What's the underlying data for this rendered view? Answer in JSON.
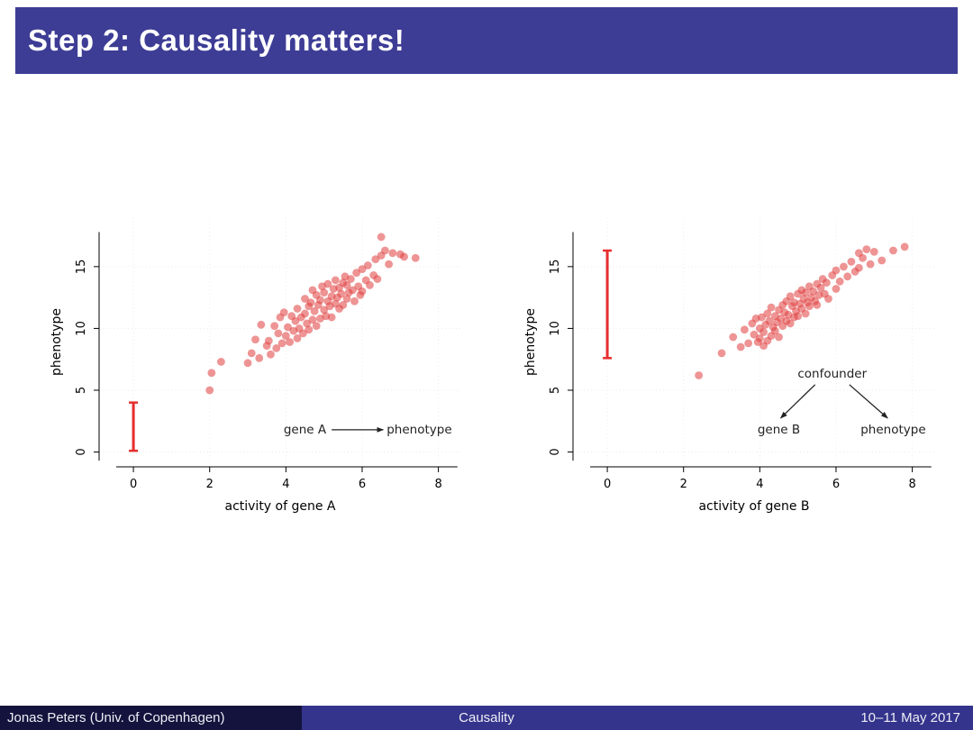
{
  "slide": {
    "title": "Step 2: Causality matters!",
    "footer": {
      "author": "Jonas Peters (Univ. of Copenhagen)",
      "title": "Causality",
      "date": "10–11 May 2017"
    },
    "colors": {
      "header_bg": "#3d3d96",
      "footer_author_bg": "#13133d",
      "footer_main_bg": "#34348c",
      "point": "#e03c3c",
      "interval": "#e62e2e",
      "axis": "#000000",
      "grid": "#ececec",
      "annotation": "#222222"
    }
  },
  "chart_data": [
    {
      "type": "scatter",
      "title": "",
      "xlabel": "activity of gene A",
      "ylabel": "phenotype",
      "xlim": [
        -0.9,
        8.6
      ],
      "ylim": [
        -1.2,
        19
      ],
      "xticks": [
        0,
        2,
        4,
        6,
        8
      ],
      "yticks": [
        0,
        5,
        10,
        15
      ],
      "interval": {
        "x": 0,
        "y0": 0.1,
        "y1": 4.0
      },
      "points": [
        [
          2.0,
          5.0
        ],
        [
          2.05,
          6.4
        ],
        [
          2.3,
          7.3
        ],
        [
          3.0,
          7.2
        ],
        [
          3.1,
          8.0
        ],
        [
          3.2,
          9.1
        ],
        [
          3.3,
          7.6
        ],
        [
          3.35,
          10.3
        ],
        [
          3.5,
          8.6
        ],
        [
          3.55,
          9.0
        ],
        [
          3.6,
          7.9
        ],
        [
          3.7,
          10.2
        ],
        [
          3.75,
          8.4
        ],
        [
          3.8,
          9.6
        ],
        [
          3.85,
          10.9
        ],
        [
          3.9,
          8.8
        ],
        [
          3.95,
          11.3
        ],
        [
          4.0,
          9.4
        ],
        [
          4.05,
          10.1
        ],
        [
          4.1,
          8.9
        ],
        [
          4.15,
          11.0
        ],
        [
          4.2,
          9.8
        ],
        [
          4.25,
          10.6
        ],
        [
          4.3,
          9.2
        ],
        [
          4.3,
          11.6
        ],
        [
          4.35,
          10.0
        ],
        [
          4.4,
          10.9
        ],
        [
          4.45,
          9.6
        ],
        [
          4.5,
          11.2
        ],
        [
          4.5,
          12.4
        ],
        [
          4.55,
          10.4
        ],
        [
          4.6,
          11.8
        ],
        [
          4.6,
          9.9
        ],
        [
          4.65,
          12.1
        ],
        [
          4.7,
          10.7
        ],
        [
          4.7,
          13.1
        ],
        [
          4.75,
          11.4
        ],
        [
          4.8,
          12.7
        ],
        [
          4.8,
          10.2
        ],
        [
          4.85,
          11.9
        ],
        [
          4.9,
          12.3
        ],
        [
          4.9,
          10.8
        ],
        [
          4.95,
          13.4
        ],
        [
          5.0,
          11.5
        ],
        [
          5.0,
          12.9
        ],
        [
          5.05,
          11.0
        ],
        [
          5.1,
          12.2
        ],
        [
          5.1,
          13.6
        ],
        [
          5.15,
          11.8
        ],
        [
          5.2,
          12.6
        ],
        [
          5.2,
          10.9
        ],
        [
          5.25,
          13.2
        ],
        [
          5.3,
          12.0
        ],
        [
          5.3,
          13.9
        ],
        [
          5.35,
          12.5
        ],
        [
          5.4,
          11.6
        ],
        [
          5.4,
          13.3
        ],
        [
          5.45,
          12.8
        ],
        [
          5.5,
          13.7
        ],
        [
          5.5,
          11.9
        ],
        [
          5.55,
          14.2
        ],
        [
          5.6,
          12.4
        ],
        [
          5.6,
          13.5
        ],
        [
          5.65,
          12.9
        ],
        [
          5.7,
          14.0
        ],
        [
          5.75,
          13.1
        ],
        [
          5.8,
          12.2
        ],
        [
          5.85,
          14.5
        ],
        [
          5.9,
          13.4
        ],
        [
          5.95,
          12.7
        ],
        [
          6.0,
          14.8
        ],
        [
          6.0,
          13.0
        ],
        [
          6.1,
          13.9
        ],
        [
          6.15,
          15.1
        ],
        [
          6.2,
          13.5
        ],
        [
          6.3,
          14.3
        ],
        [
          6.35,
          15.6
        ],
        [
          6.4,
          14.0
        ],
        [
          6.5,
          17.4
        ],
        [
          6.5,
          15.9
        ],
        [
          6.6,
          16.3
        ],
        [
          6.7,
          15.2
        ],
        [
          6.8,
          16.1
        ],
        [
          7.0,
          16.0
        ],
        [
          7.1,
          15.8
        ],
        [
          7.4,
          15.7
        ]
      ],
      "annotations": {
        "texts": [
          {
            "t": "gene A",
            "x": 4.5,
            "y": 1.8
          },
          {
            "t": "phenotype",
            "x": 7.5,
            "y": 1.8
          }
        ],
        "arrows": [
          {
            "x1": 5.2,
            "y1": 1.8,
            "x2": 6.55,
            "y2": 1.8
          }
        ]
      }
    },
    {
      "type": "scatter",
      "title": "",
      "xlabel": "activity of gene B",
      "ylabel": "phenotype",
      "xlim": [
        -0.9,
        8.6
      ],
      "ylim": [
        -1.2,
        19
      ],
      "xticks": [
        0,
        2,
        4,
        6,
        8
      ],
      "yticks": [
        0,
        5,
        10,
        15
      ],
      "interval": {
        "x": 0,
        "y0": 7.6,
        "y1": 16.3
      },
      "points": [
        [
          2.4,
          6.2
        ],
        [
          3.0,
          8.0
        ],
        [
          3.3,
          9.3
        ],
        [
          3.5,
          8.5
        ],
        [
          3.6,
          9.9
        ],
        [
          3.7,
          8.8
        ],
        [
          3.8,
          10.4
        ],
        [
          3.85,
          9.5
        ],
        [
          3.9,
          10.8
        ],
        [
          3.95,
          8.9
        ],
        [
          4.0,
          10.0
        ],
        [
          4.0,
          9.2
        ],
        [
          4.05,
          10.9
        ],
        [
          4.1,
          9.7
        ],
        [
          4.1,
          8.6
        ],
        [
          4.15,
          10.3
        ],
        [
          4.2,
          9.0
        ],
        [
          4.2,
          11.2
        ],
        [
          4.25,
          10.6
        ],
        [
          4.3,
          9.4
        ],
        [
          4.3,
          11.7
        ],
        [
          4.35,
          10.1
        ],
        [
          4.4,
          11.0
        ],
        [
          4.4,
          9.8
        ],
        [
          4.45,
          10.5
        ],
        [
          4.5,
          11.5
        ],
        [
          4.5,
          9.3
        ],
        [
          4.55,
          10.8
        ],
        [
          4.6,
          11.9
        ],
        [
          4.6,
          10.2
        ],
        [
          4.65,
          11.3
        ],
        [
          4.7,
          10.6
        ],
        [
          4.7,
          12.2
        ],
        [
          4.75,
          11.1
        ],
        [
          4.8,
          12.6
        ],
        [
          4.8,
          10.4
        ],
        [
          4.85,
          11.8
        ],
        [
          4.9,
          10.9
        ],
        [
          4.9,
          12.1
        ],
        [
          4.95,
          11.4
        ],
        [
          5.0,
          12.8
        ],
        [
          5.0,
          11.0
        ],
        [
          5.05,
          12.0
        ],
        [
          5.1,
          11.6
        ],
        [
          5.1,
          13.1
        ],
        [
          5.15,
          12.4
        ],
        [
          5.2,
          11.2
        ],
        [
          5.2,
          12.9
        ],
        [
          5.25,
          12.1
        ],
        [
          5.3,
          13.4
        ],
        [
          5.3,
          11.8
        ],
        [
          5.35,
          12.5
        ],
        [
          5.4,
          13.0
        ],
        [
          5.45,
          12.2
        ],
        [
          5.5,
          13.6
        ],
        [
          5.5,
          11.9
        ],
        [
          5.55,
          12.7
        ],
        [
          5.6,
          13.3
        ],
        [
          5.65,
          14.0
        ],
        [
          5.7,
          12.8
        ],
        [
          5.75,
          13.7
        ],
        [
          5.8,
          12.4
        ],
        [
          5.9,
          14.3
        ],
        [
          6.0,
          13.2
        ],
        [
          6.0,
          14.7
        ],
        [
          6.1,
          13.8
        ],
        [
          6.2,
          15.0
        ],
        [
          6.3,
          14.2
        ],
        [
          6.4,
          15.4
        ],
        [
          6.5,
          14.6
        ],
        [
          6.6,
          16.1
        ],
        [
          6.6,
          14.9
        ],
        [
          6.7,
          15.7
        ],
        [
          6.8,
          16.4
        ],
        [
          6.9,
          15.2
        ],
        [
          7.0,
          16.2
        ],
        [
          7.2,
          15.5
        ],
        [
          7.5,
          16.3
        ],
        [
          7.8,
          16.6
        ]
      ],
      "annotations": {
        "texts": [
          {
            "t": "confounder",
            "x": 5.9,
            "y": 6.3
          },
          {
            "t": "gene B",
            "x": 4.5,
            "y": 1.8
          },
          {
            "t": "phenotype",
            "x": 7.5,
            "y": 1.8
          }
        ],
        "arrows": [
          {
            "x1": 5.45,
            "y1": 5.45,
            "x2": 4.55,
            "y2": 2.75
          },
          {
            "x1": 6.35,
            "y1": 5.45,
            "x2": 7.35,
            "y2": 2.75
          }
        ]
      }
    }
  ]
}
